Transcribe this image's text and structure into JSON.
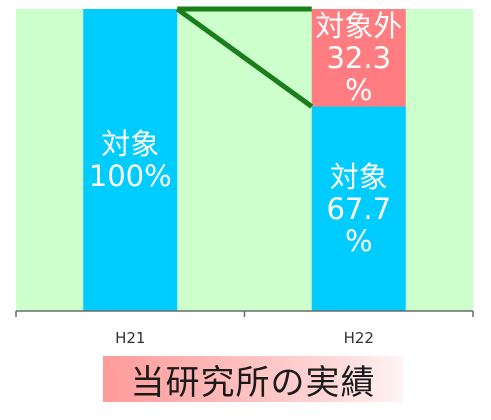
{
  "chart_data": {
    "type": "bar",
    "stacked": true,
    "categories": [
      "H21",
      "H22"
    ],
    "ylim": [
      0,
      100
    ],
    "series": [
      {
        "name": "対象",
        "values": [
          100,
          67.7
        ],
        "color": "#00ccff"
      },
      {
        "name": "対象外",
        "values": [
          0,
          32.3
        ],
        "color": "#ff7c80"
      }
    ],
    "labels": [
      {
        "category": "H21",
        "series": "対象",
        "lines": [
          "対象",
          "100%"
        ]
      },
      {
        "category": "H22",
        "series": "対象",
        "lines": [
          "対象",
          "67.7",
          "%"
        ]
      },
      {
        "category": "H22",
        "series": "対象外",
        "lines": [
          "対象外",
          "32.3",
          "%"
        ]
      }
    ],
    "connector_color": "#1a7f1a",
    "plot_background": "#ccffcc"
  },
  "caption": "当研究所の実績"
}
